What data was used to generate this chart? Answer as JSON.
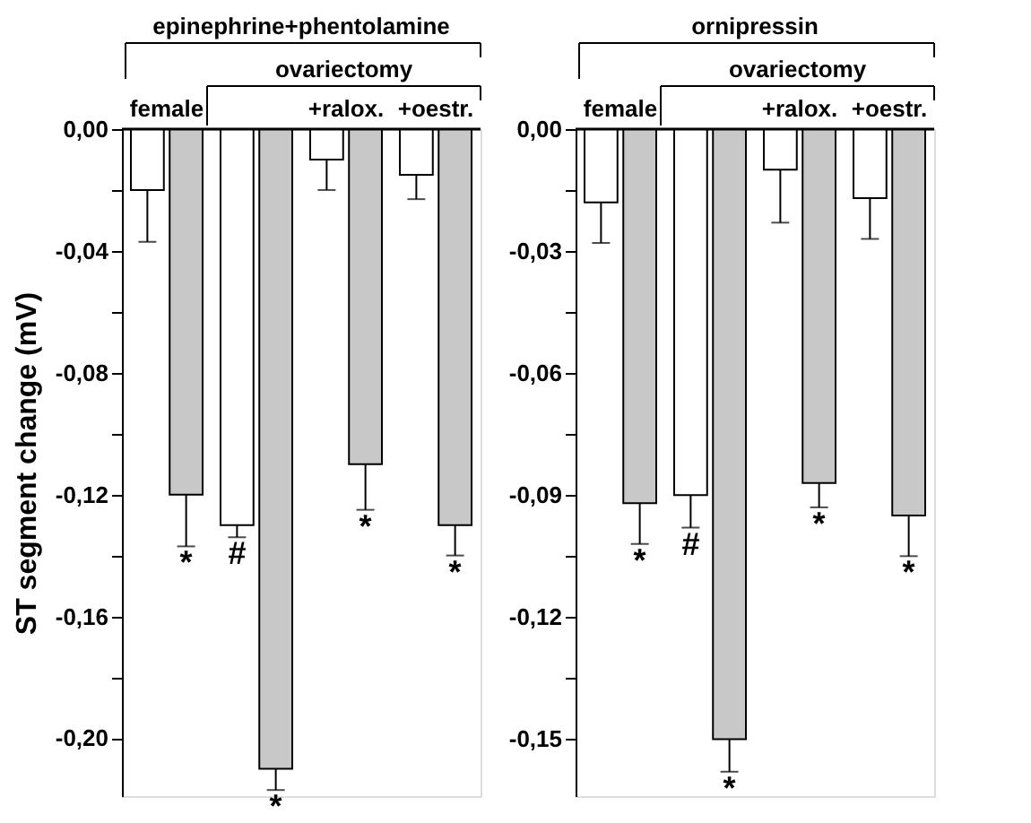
{
  "chart_data": [
    {
      "type": "bar",
      "title": "epinephrine+phentolamine",
      "ylabel": "ST segment change (mV)",
      "categories": [
        "female",
        null,
        "+ralox.",
        "+oestr."
      ],
      "series": [
        {
          "color": "#ffffff",
          "values": [
            -0.02,
            -0.13,
            -0.01,
            -0.015
          ],
          "errors": [
            [
              -0.037,
              -0.02
            ],
            [
              -0.134,
              -0.13
            ],
            [
              -0.02,
              -0.01
            ],
            [
              -0.023,
              -0.015
            ]
          ]
        },
        {
          "color": "#c8c8c8",
          "values": [
            -0.12,
            -0.21,
            -0.11,
            -0.13
          ],
          "errors": [
            [
              -0.137,
              -0.12
            ],
            [
              -0.217,
              -0.21
            ],
            [
              -0.125,
              -0.11
            ],
            [
              -0.14,
              -0.13
            ]
          ]
        }
      ],
      "ylim": [
        -0.219,
        0
      ],
      "yticks": [
        {
          "value": 0,
          "label": "0,00"
        },
        {
          "value": -0.02,
          "label": null
        },
        {
          "value": -0.04,
          "label": "-0,04"
        },
        {
          "value": -0.06,
          "label": null
        },
        {
          "value": -0.08,
          "label": "-0,08"
        },
        {
          "value": -0.1,
          "label": null
        },
        {
          "value": -0.12,
          "label": "-0,12"
        },
        {
          "value": -0.14,
          "label": null
        },
        {
          "value": -0.16,
          "label": "-0,16"
        },
        {
          "value": -0.18,
          "label": null
        },
        {
          "value": -0.2,
          "label": "-0,20"
        }
      ],
      "grid": false,
      "annotations": [
        "ovariectomy",
        {
          "text": "*",
          "y": -0.137
        },
        {
          "text": "#",
          "y": -0.134
        },
        {
          "text": "*",
          "y": -0.217
        },
        {
          "text": "*",
          "y": -0.125
        },
        {
          "text": "*",
          "y": -0.14
        }
      ]
    },
    {
      "type": "bar",
      "title": "ornipressin",
      "categories": [
        "female",
        null,
        "+ralox.",
        "+oestr."
      ],
      "series": [
        {
          "color": "#ffffff",
          "values": [
            -0.018,
            -0.09,
            -0.01,
            -0.017
          ],
          "errors": [
            [
              -0.028,
              -0.018
            ],
            [
              -0.098,
              -0.09
            ],
            [
              -0.023,
              -0.01
            ],
            [
              -0.027,
              -0.017
            ]
          ]
        },
        {
          "color": "#c8c8c8",
          "values": [
            -0.092,
            -0.15,
            -0.087,
            -0.095
          ],
          "errors": [
            [
              -0.102,
              -0.092
            ],
            [
              -0.158,
              -0.15
            ],
            [
              -0.093,
              -0.087
            ],
            [
              -0.105,
              -0.095
            ]
          ]
        }
      ],
      "ylim": [
        -0.164,
        0
      ],
      "yticks": [
        {
          "value": 0,
          "label": "0,00"
        },
        {
          "value": -0.015,
          "label": null
        },
        {
          "value": -0.03,
          "label": "-0,03"
        },
        {
          "value": -0.045,
          "label": null
        },
        {
          "value": -0.06,
          "label": "-0,06"
        },
        {
          "value": -0.075,
          "label": null
        },
        {
          "value": -0.09,
          "label": "-0,09"
        },
        {
          "value": -0.105,
          "label": null
        },
        {
          "value": -0.12,
          "label": "-0,12"
        },
        {
          "value": -0.135,
          "label": null
        },
        {
          "value": -0.15,
          "label": "-0,15"
        }
      ],
      "grid": false,
      "annotations": [
        "ovariectomy",
        {
          "text": "*",
          "y": -0.102
        },
        {
          "text": "#",
          "y": -0.098
        },
        {
          "text": "*",
          "y": -0.158
        },
        {
          "text": "*",
          "y": -0.093
        },
        {
          "text": "*",
          "y": -0.105
        }
      ]
    }
  ]
}
